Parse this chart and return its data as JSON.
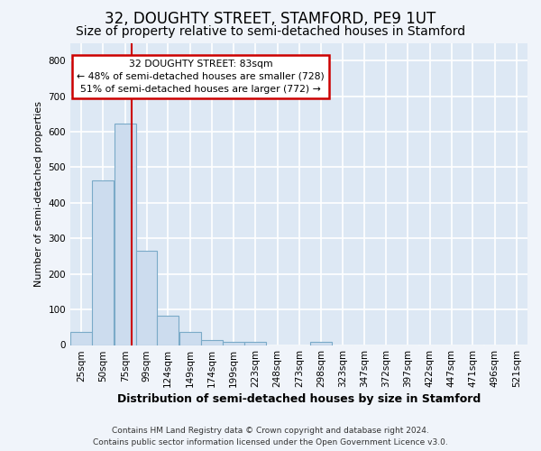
{
  "title1": "32, DOUGHTY STREET, STAMFORD, PE9 1UT",
  "title2": "Size of property relative to semi-detached houses in Stamford",
  "xlabel": "Distribution of semi-detached houses by size in Stamford",
  "ylabel": "Number of semi-detached properties",
  "footer1": "Contains HM Land Registry data © Crown copyright and database right 2024.",
  "footer2": "Contains public sector information licensed under the Open Government Licence v3.0.",
  "categories": [
    "25sqm",
    "50sqm",
    "75sqm",
    "99sqm",
    "124sqm",
    "149sqm",
    "174sqm",
    "199sqm",
    "223sqm",
    "248sqm",
    "273sqm",
    "298sqm",
    "323sqm",
    "347sqm",
    "372sqm",
    "397sqm",
    "422sqm",
    "447sqm",
    "471sqm",
    "496sqm",
    "521sqm"
  ],
  "bin_edges": [
    12.5,
    37.5,
    62.5,
    87.5,
    111.5,
    136.5,
    161.5,
    186.5,
    211.5,
    236.5,
    261.5,
    286.5,
    311.5,
    335.5,
    360.5,
    385.5,
    410.5,
    435.5,
    459.5,
    484.5,
    509.5,
    534.5
  ],
  "values": [
    38,
    463,
    623,
    265,
    83,
    38,
    15,
    10,
    8,
    0,
    0,
    8,
    0,
    0,
    0,
    0,
    0,
    0,
    0,
    0,
    0
  ],
  "bar_color": "#ccdcee",
  "bar_edge_color": "#7aaac8",
  "property_size": 83,
  "property_line_color": "#cc0000",
  "ann_line1": "32 DOUGHTY STREET: 83sqm",
  "ann_line2": "← 48% of semi-detached houses are smaller (728)",
  "ann_line3": "51% of semi-detached houses are larger (772) →",
  "annotation_box_color": "#cc0000",
  "ylim": [
    0,
    850
  ],
  "yticks": [
    0,
    100,
    200,
    300,
    400,
    500,
    600,
    700,
    800
  ],
  "plot_bg_color": "#dde8f4",
  "fig_bg_color": "#f0f4fa",
  "grid_color": "#ffffff",
  "title1_fontsize": 12,
  "title2_fontsize": 10,
  "xlabel_fontsize": 9,
  "ylabel_fontsize": 8,
  "tick_fontsize": 7.5,
  "footer_fontsize": 6.5
}
